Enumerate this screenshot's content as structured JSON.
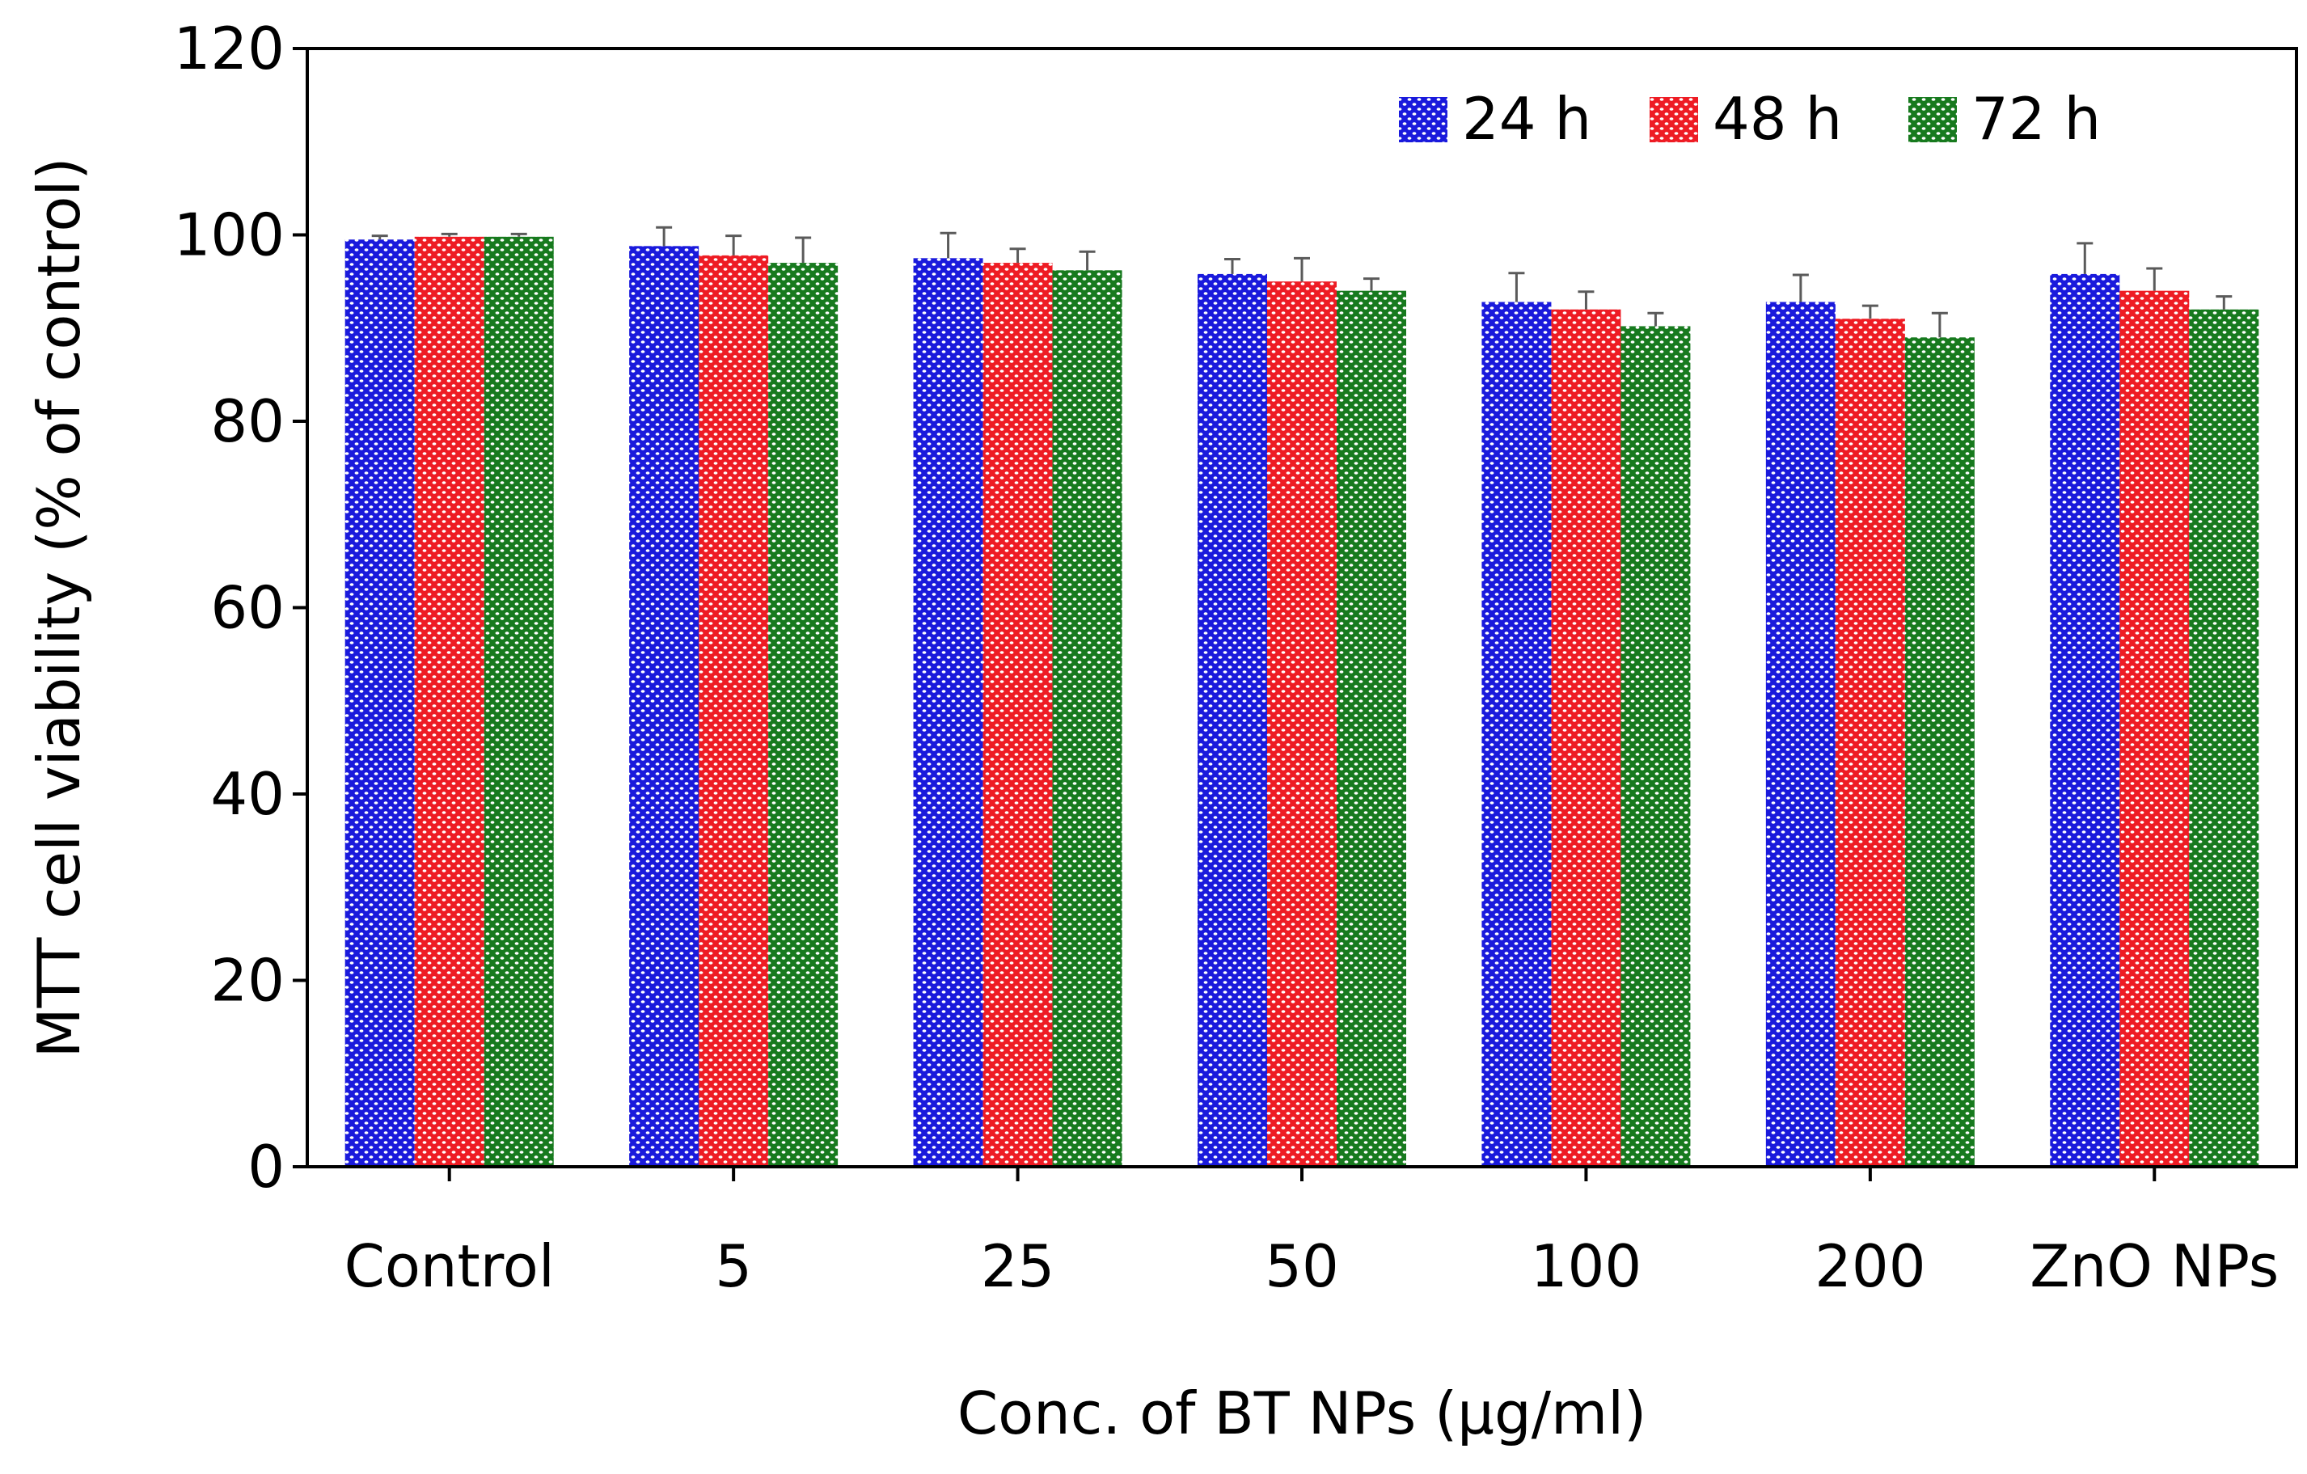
{
  "chart_data": {
    "type": "bar",
    "title": "",
    "xlabel": "Conc. of BT NPs (µg/ml)",
    "ylabel": "MTT cell viability (% of control)",
    "ylim": [
      0,
      120
    ],
    "yticks": [
      0,
      20,
      40,
      60,
      80,
      100,
      120
    ],
    "categories": [
      "Control",
      "5",
      "25",
      "50",
      "100",
      "200",
      "ZnO NPs"
    ],
    "series": [
      {
        "name": "24 h",
        "color": "#1a1adc",
        "values": [
          99.5,
          98.8,
          97.5,
          95.8,
          92.8,
          92.8,
          95.8
        ],
        "errors": [
          0.4,
          2.0,
          2.7,
          1.6,
          3.1,
          2.9,
          3.3
        ]
      },
      {
        "name": "48 h",
        "color": "#ee1c24",
        "values": [
          99.8,
          97.8,
          97.0,
          95.0,
          92.0,
          91.0,
          94.0
        ],
        "errors": [
          0.3,
          2.1,
          1.5,
          2.5,
          1.9,
          1.4,
          2.4
        ]
      },
      {
        "name": "72 h",
        "color": "#177a1e",
        "values": [
          99.8,
          97.0,
          96.2,
          94.0,
          90.2,
          89.0,
          92.0
        ],
        "errors": [
          0.3,
          2.7,
          2.0,
          1.3,
          1.4,
          2.6,
          1.4
        ]
      }
    ],
    "legend_position": "top-right",
    "grid": false
  }
}
